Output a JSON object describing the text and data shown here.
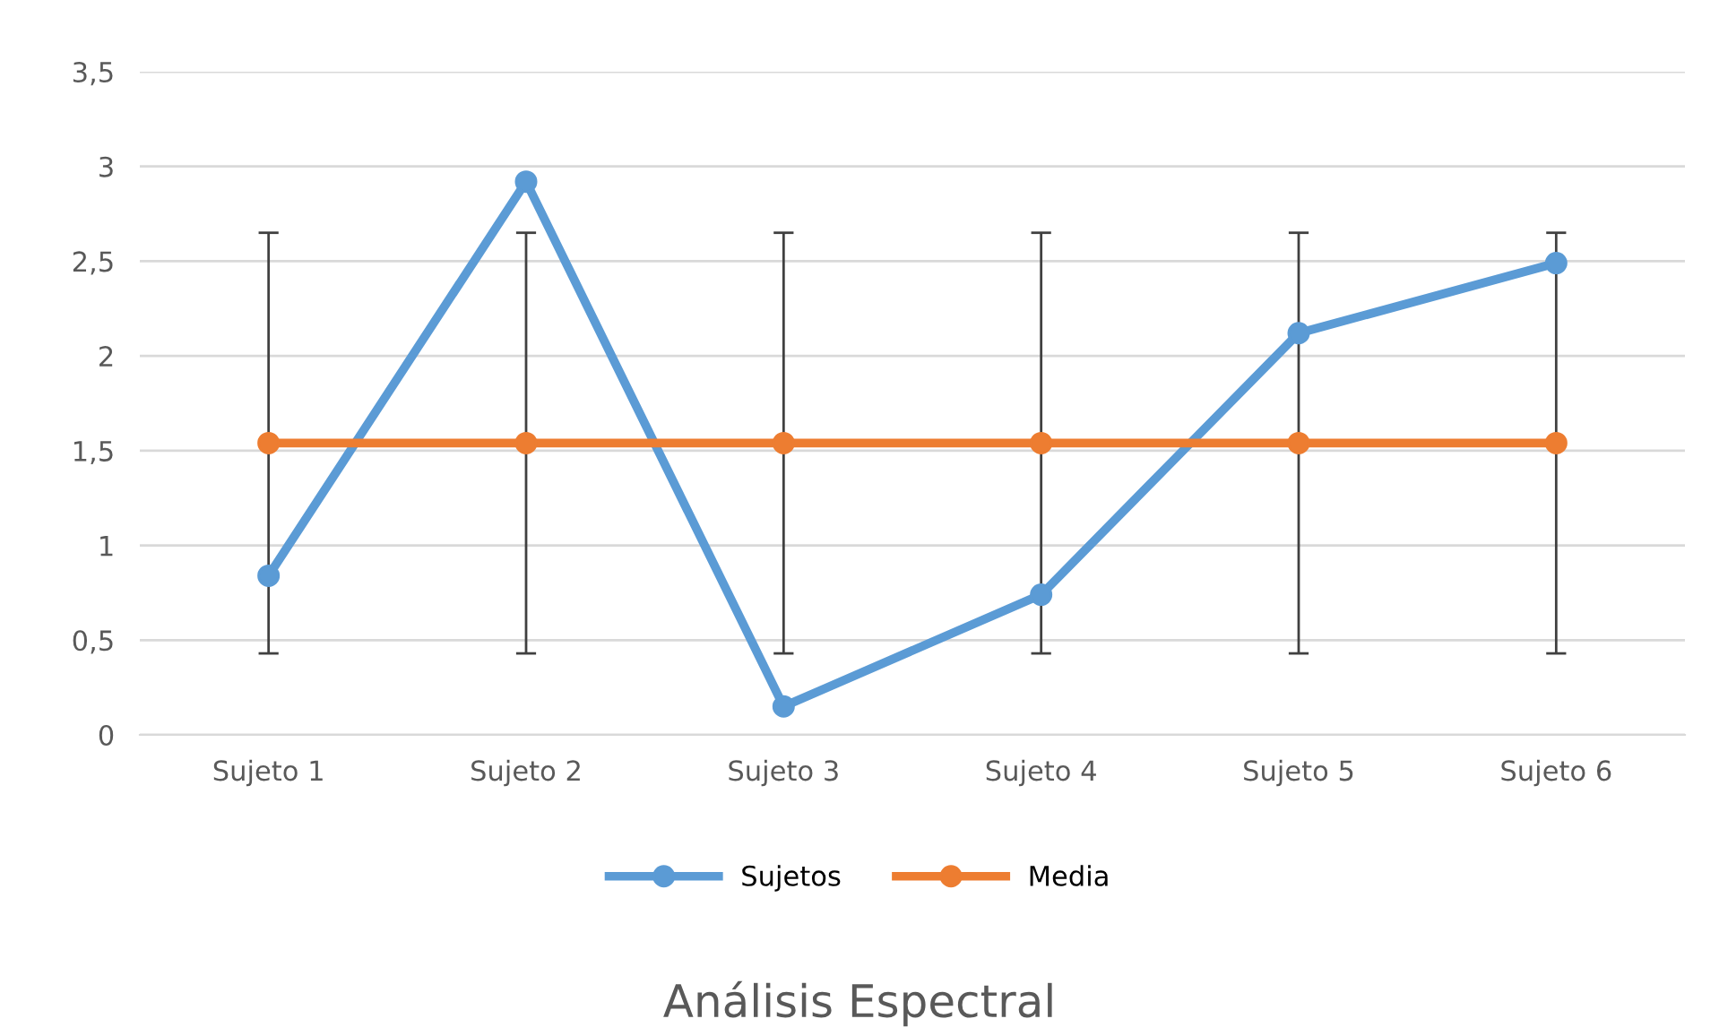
{
  "chart_data": {
    "type": "line",
    "title": "Análisis Espectral",
    "categories": [
      "Sujeto 1",
      "Sujeto 2",
      "Sujeto 3",
      "Sujeto 4",
      "Sujeto 5",
      "Sujeto 6"
    ],
    "series": [
      {
        "name": "Sujetos",
        "color": "#5b9bd5",
        "values": [
          0.84,
          2.92,
          0.15,
          0.74,
          2.12,
          2.49
        ]
      },
      {
        "name": "Media",
        "color": "#ed7d31",
        "values": [
          1.54,
          1.54,
          1.54,
          1.54,
          1.54,
          1.54
        ],
        "errors": [
          1.11,
          1.11,
          1.11,
          1.11,
          1.11,
          1.11
        ]
      }
    ],
    "ylim": [
      0,
      3.5
    ],
    "yticks": [
      {
        "value": 0,
        "label": "0"
      },
      {
        "value": 0.5,
        "label": "0,5"
      },
      {
        "value": 1,
        "label": "1"
      },
      {
        "value": 1.5,
        "label": "1,5"
      },
      {
        "value": 2,
        "label": "2"
      },
      {
        "value": 2.5,
        "label": "2,5"
      },
      {
        "value": 3,
        "label": "3"
      },
      {
        "value": 3.5,
        "label": "3,5"
      }
    ],
    "grid": "y",
    "legend": "bottom",
    "marker": "circle",
    "line_style": "solid"
  }
}
